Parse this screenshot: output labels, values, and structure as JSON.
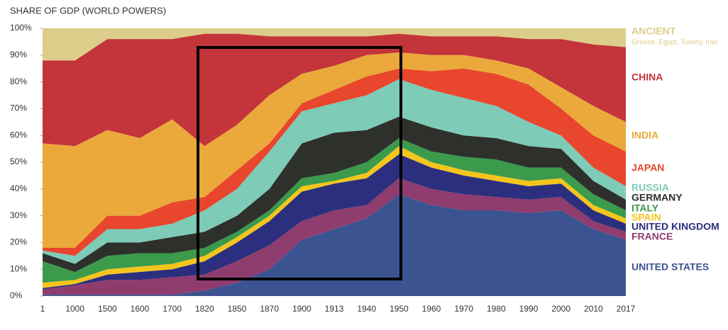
{
  "chart_data": {
    "type": "stacked-area",
    "title": "SHARE OF GDP (WORLD POWERS)",
    "categories": [
      "1",
      "1000",
      "1500",
      "1600",
      "1700",
      "1820",
      "1850",
      "1870",
      "1900",
      "1913",
      "1940",
      "1950",
      "1960",
      "1970",
      "1980",
      "1990",
      "2000",
      "2010",
      "2017"
    ],
    "series": [
      {
        "name": "UNITED STATES",
        "color": "#3b5390",
        "values": [
          0.5,
          0.5,
          0.5,
          0.5,
          0.5,
          2,
          5,
          10,
          21,
          25,
          29,
          38,
          34,
          32,
          32,
          31,
          32,
          25,
          21
        ]
      },
      {
        "name": "FRANCE",
        "color": "#8e3d6e",
        "values": [
          2,
          3.5,
          5.5,
          5.5,
          6.5,
          6,
          8,
          9,
          7,
          7,
          5,
          6,
          6,
          6,
          5,
          5,
          5,
          3,
          3
        ]
      },
      {
        "name": "UNITED KINGDOM",
        "color": "#2b2f7e",
        "values": [
          0.5,
          0.5,
          2,
          3,
          3,
          5,
          7,
          9,
          11,
          10,
          10,
          9,
          8,
          7,
          6,
          5,
          5,
          4,
          3
        ]
      },
      {
        "name": "SPAIN",
        "color": "#f4c51c",
        "values": [
          2,
          1.5,
          2,
          2,
          2,
          2,
          2,
          2,
          2,
          1,
          2,
          3,
          2,
          2,
          2,
          2,
          2,
          2,
          2
        ]
      },
      {
        "name": "ITALY",
        "color": "#3b9a4b",
        "values": [
          8,
          3,
          5,
          5,
          4,
          3,
          2,
          2,
          3,
          3,
          4,
          3,
          4,
          5,
          6,
          5,
          4,
          4,
          3
        ]
      },
      {
        "name": "GERMANY",
        "color": "#2d302b",
        "values": [
          3,
          3,
          5,
          4,
          6,
          6,
          6,
          8,
          13,
          15,
          12,
          8,
          9,
          8,
          8,
          8,
          7,
          5,
          4
        ]
      },
      {
        "name": "RUSSIA",
        "color": "#7ecbb7",
        "values": [
          1,
          3,
          5,
          5,
          5,
          8,
          10,
          14,
          12,
          11,
          13,
          14,
          14,
          14,
          12,
          9,
          5,
          5,
          5
        ]
      },
      {
        "name": "JAPAN",
        "color": "#e8462d",
        "values": [
          1,
          3,
          5,
          5,
          8,
          5,
          7,
          3,
          3,
          5,
          7,
          4,
          7,
          11,
          12,
          14,
          10,
          12,
          13
        ]
      },
      {
        "name": "INDIA",
        "color": "#eaa93a",
        "values": [
          39,
          38,
          32,
          29,
          31,
          19,
          17,
          18,
          11,
          9,
          8,
          6,
          6,
          5,
          5,
          6,
          8,
          11,
          11
        ]
      },
      {
        "name": "CHINA",
        "color": "#c3353a",
        "values": [
          31,
          32,
          34,
          37,
          30,
          42,
          34,
          22,
          14,
          11,
          7,
          7,
          7,
          7,
          9,
          11,
          18,
          23,
          28
        ]
      },
      {
        "name": "ANCIENT",
        "description": "Greece, Egypt, Turkey, Iran",
        "color": "#dccd8a",
        "values": [
          12,
          12,
          4,
          4,
          4,
          2,
          2,
          3,
          3,
          3,
          3,
          2,
          3,
          3,
          3,
          4,
          4,
          6,
          7
        ]
      }
    ],
    "ylim": [
      0,
      100
    ],
    "yticks": [
      {
        "value": 0,
        "label": "0%"
      },
      {
        "value": 10,
        "label": "10%"
      },
      {
        "value": 20,
        "label": "20%"
      },
      {
        "value": 30,
        "label": "30%"
      },
      {
        "value": 40,
        "label": "40%"
      },
      {
        "value": 50,
        "label": "50%"
      },
      {
        "value": 60,
        "label": "60%"
      },
      {
        "value": 70,
        "label": "70%"
      },
      {
        "value": 80,
        "label": "80%"
      },
      {
        "value": 90,
        "label": "90%"
      },
      {
        "value": 100,
        "label": "100%"
      }
    ],
    "grid": false,
    "legend": "right"
  }
}
